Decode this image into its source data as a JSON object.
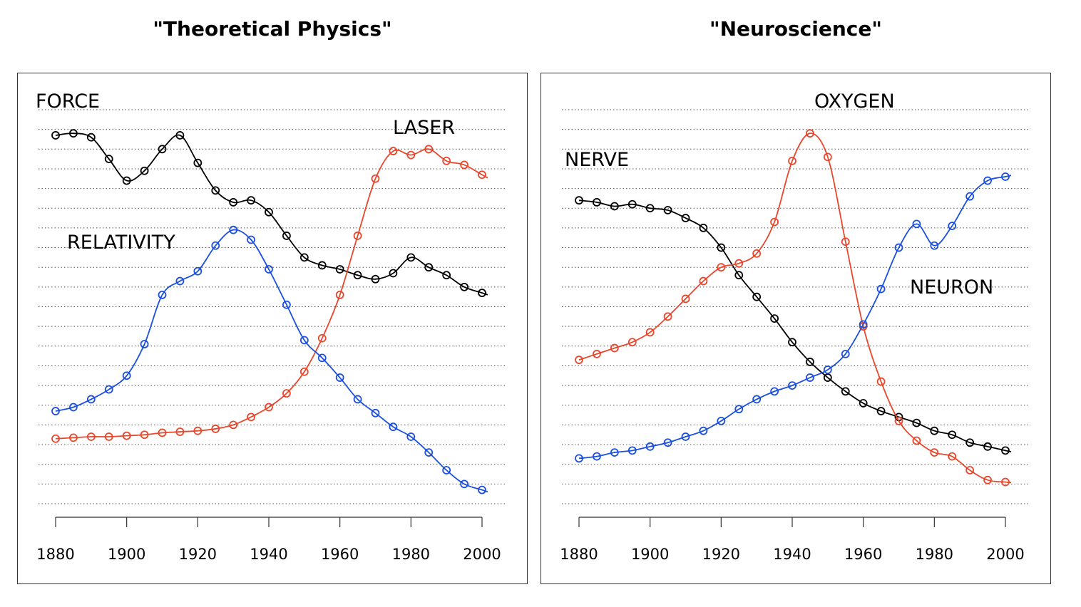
{
  "chart_data": [
    {
      "type": "line",
      "title": "\"Theoretical Physics\"",
      "xlabel": "",
      "ylabel": "",
      "xlim": [
        1880,
        2000
      ],
      "x_ticks": [
        1880,
        1900,
        1920,
        1940,
        1960,
        1980,
        2000
      ],
      "x_tick_labels": [
        "1880",
        "1900",
        "1920",
        "1940",
        "1960",
        "1980",
        "2000"
      ],
      "ylim": [
        0,
        20
      ],
      "grid": "horizontal dotted",
      "markers": "open circles",
      "series": [
        {
          "name": "FORCE",
          "color": "#000000",
          "x": [
            1880,
            1885,
            1890,
            1895,
            1900,
            1905,
            1910,
            1915,
            1920,
            1925,
            1930,
            1935,
            1940,
            1945,
            1950,
            1955,
            1960,
            1965,
            1970,
            1975,
            1980,
            1985,
            1990,
            1995,
            2000
          ],
          "values": [
            18.7,
            18.8,
            18.6,
            17.5,
            16.4,
            16.9,
            18.0,
            18.7,
            17.3,
            15.9,
            15.3,
            15.4,
            14.8,
            13.6,
            12.5,
            12.1,
            11.9,
            11.6,
            11.4,
            11.7,
            12.5,
            12.0,
            11.6,
            11.0,
            10.7
          ]
        },
        {
          "name": "LASER",
          "color": "#e8472c",
          "x": [
            1880,
            1885,
            1890,
            1895,
            1900,
            1905,
            1910,
            1915,
            1920,
            1925,
            1930,
            1935,
            1940,
            1945,
            1950,
            1955,
            1960,
            1965,
            1970,
            1975,
            1980,
            1985,
            1990,
            1995,
            2000
          ],
          "values": [
            3.3,
            3.35,
            3.4,
            3.4,
            3.45,
            3.5,
            3.6,
            3.65,
            3.7,
            3.8,
            4.0,
            4.4,
            4.9,
            5.6,
            6.7,
            8.4,
            10.6,
            13.6,
            16.5,
            17.9,
            17.7,
            18.0,
            17.4,
            17.2,
            16.7
          ]
        },
        {
          "name": "RELATIVITY",
          "color": "#1a4fe0",
          "x": [
            1880,
            1885,
            1890,
            1895,
            1900,
            1905,
            1910,
            1915,
            1920,
            1925,
            1930,
            1935,
            1940,
            1945,
            1950,
            1955,
            1960,
            1965,
            1970,
            1975,
            1980,
            1985,
            1990,
            1995,
            2000
          ],
          "values": [
            4.7,
            4.9,
            5.3,
            5.8,
            6.5,
            8.1,
            10.6,
            11.3,
            11.8,
            13.1,
            13.9,
            13.4,
            11.9,
            10.1,
            8.3,
            7.4,
            6.4,
            5.3,
            4.6,
            3.9,
            3.4,
            2.6,
            1.7,
            1.0,
            0.7
          ]
        }
      ]
    },
    {
      "type": "line",
      "title": "\"Neuroscience\"",
      "xlabel": "",
      "ylabel": "",
      "xlim": [
        1880,
        2000
      ],
      "x_ticks": [
        1880,
        1900,
        1920,
        1940,
        1960,
        1980,
        2000
      ],
      "x_tick_labels": [
        "1880",
        "1900",
        "1920",
        "1940",
        "1960",
        "1980",
        "2000"
      ],
      "ylim": [
        0,
        20
      ],
      "grid": "horizontal dotted",
      "markers": "open circles",
      "series": [
        {
          "name": "NERVE",
          "color": "#000000",
          "x": [
            1880,
            1885,
            1890,
            1895,
            1900,
            1905,
            1910,
            1915,
            1920,
            1925,
            1930,
            1935,
            1940,
            1945,
            1950,
            1955,
            1960,
            1965,
            1970,
            1975,
            1980,
            1985,
            1990,
            1995,
            2000
          ],
          "values": [
            15.4,
            15.3,
            15.1,
            15.2,
            15.0,
            14.9,
            14.5,
            14.0,
            13.0,
            11.6,
            10.5,
            9.4,
            8.2,
            7.2,
            6.4,
            5.7,
            5.1,
            4.7,
            4.4,
            4.1,
            3.7,
            3.5,
            3.1,
            2.9,
            2.7
          ]
        },
        {
          "name": "OXYGEN",
          "color": "#e8472c",
          "x": [
            1880,
            1885,
            1890,
            1895,
            1900,
            1905,
            1910,
            1915,
            1920,
            1925,
            1930,
            1935,
            1940,
            1945,
            1950,
            1955,
            1960,
            1965,
            1970,
            1975,
            1980,
            1985,
            1990,
            1995,
            2000
          ],
          "values": [
            7.3,
            7.6,
            7.9,
            8.2,
            8.7,
            9.5,
            10.4,
            11.3,
            12.0,
            12.2,
            12.7,
            14.3,
            17.4,
            18.8,
            17.6,
            13.3,
            9.0,
            6.2,
            4.2,
            3.2,
            2.6,
            2.4,
            1.7,
            1.2,
            1.1
          ]
        },
        {
          "name": "NEURON",
          "color": "#1a4fe0",
          "x": [
            1880,
            1885,
            1890,
            1895,
            1900,
            1905,
            1910,
            1915,
            1920,
            1925,
            1930,
            1935,
            1940,
            1945,
            1950,
            1955,
            1960,
            1965,
            1970,
            1975,
            1980,
            1985,
            1990,
            1995,
            2000
          ],
          "values": [
            2.3,
            2.4,
            2.6,
            2.7,
            2.9,
            3.1,
            3.4,
            3.7,
            4.2,
            4.8,
            5.3,
            5.7,
            6.0,
            6.4,
            6.8,
            7.6,
            9.1,
            10.9,
            13.0,
            14.2,
            13.1,
            14.1,
            15.6,
            16.4,
            16.6
          ]
        }
      ]
    }
  ]
}
